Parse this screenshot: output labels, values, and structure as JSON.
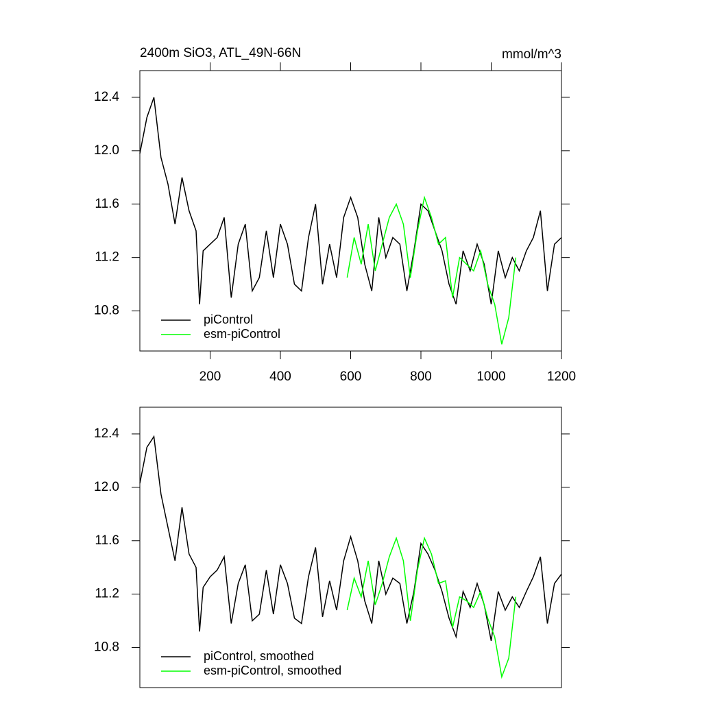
{
  "chart_data": [
    {
      "type": "line",
      "title": "2400m SiO3, ATL_49N-66N",
      "units": "mmol/m^3",
      "xlim": [
        0,
        1200
      ],
      "xticks": [
        200,
        400,
        600,
        800,
        1000,
        1200
      ],
      "ylim": [
        10.5,
        12.6
      ],
      "yticks": [
        {
          "value": 10.8,
          "label": "10.8"
        },
        11.2,
        11.6,
        {
          "value": 12.0,
          "label": "12.0"
        },
        12.4
      ],
      "legend": "lower left",
      "series": [
        {
          "name": "piControl",
          "color": "#000000",
          "x": [
            0,
            20,
            40,
            60,
            80,
            100,
            120,
            140,
            160,
            170,
            180,
            200,
            220,
            240,
            260,
            280,
            300,
            320,
            340,
            360,
            380,
            400,
            420,
            440,
            460,
            480,
            500,
            520,
            540,
            560,
            580,
            600,
            620,
            640,
            660,
            680,
            700,
            720,
            740,
            760,
            780,
            800,
            820,
            840,
            860,
            880,
            900,
            920,
            940,
            960,
            980,
            1000,
            1020,
            1040,
            1060,
            1080,
            1100,
            1120,
            1140,
            1160,
            1180,
            1200
          ],
          "values": [
            11.98,
            12.25,
            12.4,
            11.95,
            11.75,
            11.45,
            11.8,
            11.55,
            11.4,
            10.85,
            11.25,
            11.3,
            11.35,
            11.5,
            10.9,
            11.3,
            11.45,
            10.95,
            11.05,
            11.4,
            11.05,
            11.45,
            11.3,
            11.0,
            10.95,
            11.35,
            11.6,
            11.0,
            11.3,
            11.05,
            11.5,
            11.65,
            11.5,
            11.15,
            10.95,
            11.5,
            11.2,
            11.35,
            11.3,
            10.95,
            11.25,
            11.6,
            11.55,
            11.4,
            11.25,
            11.0,
            10.85,
            11.25,
            11.1,
            11.3,
            11.15,
            10.85,
            11.25,
            11.05,
            11.2,
            11.1,
            11.25,
            11.35,
            11.55,
            10.95,
            11.3,
            11.35
          ]
        },
        {
          "name": "esm-piControl",
          "color": "#00ff00",
          "x": [
            590,
            610,
            630,
            650,
            670,
            690,
            710,
            730,
            750,
            770,
            790,
            810,
            830,
            850,
            870,
            890,
            910,
            930,
            950,
            970,
            990,
            1010,
            1030,
            1050,
            1070
          ],
          "values": [
            11.05,
            11.35,
            11.15,
            11.45,
            11.1,
            11.3,
            11.5,
            11.6,
            11.45,
            11.05,
            11.4,
            11.65,
            11.5,
            11.3,
            11.35,
            10.9,
            11.2,
            11.15,
            11.1,
            11.25,
            11.0,
            10.85,
            10.55,
            10.75,
            11.2
          ]
        }
      ]
    },
    {
      "type": "line",
      "xlim": [
        0,
        1200
      ],
      "ylim": [
        10.5,
        12.6
      ],
      "yticks": [
        {
          "value": 10.8,
          "label": "10.8"
        },
        11.2,
        11.6,
        {
          "value": 12.0,
          "label": "12.0"
        },
        12.4
      ],
      "legend": "lower left",
      "series": [
        {
          "name": "piControl, smoothed",
          "color": "#000000",
          "x": [
            0,
            20,
            40,
            60,
            80,
            100,
            120,
            140,
            160,
            170,
            180,
            200,
            220,
            240,
            260,
            280,
            300,
            320,
            340,
            360,
            380,
            400,
            420,
            440,
            460,
            480,
            500,
            520,
            540,
            560,
            580,
            600,
            620,
            640,
            660,
            680,
            700,
            720,
            740,
            760,
            780,
            800,
            820,
            840,
            860,
            880,
            900,
            920,
            940,
            960,
            980,
            1000,
            1020,
            1040,
            1060,
            1080,
            1100,
            1120,
            1140,
            1160,
            1180,
            1200
          ],
          "values": [
            12.03,
            12.3,
            12.38,
            11.95,
            11.7,
            11.45,
            11.85,
            11.5,
            11.4,
            10.92,
            11.25,
            11.33,
            11.38,
            11.48,
            10.98,
            11.28,
            11.42,
            11.0,
            11.05,
            11.38,
            11.05,
            11.42,
            11.28,
            11.02,
            10.98,
            11.33,
            11.55,
            11.03,
            11.3,
            11.08,
            11.45,
            11.63,
            11.45,
            11.15,
            10.98,
            11.45,
            11.2,
            11.32,
            11.28,
            10.98,
            11.22,
            11.58,
            11.5,
            11.38,
            11.22,
            11.02,
            10.88,
            11.22,
            11.1,
            11.28,
            11.12,
            10.85,
            11.22,
            11.08,
            11.18,
            11.1,
            11.22,
            11.33,
            11.48,
            10.98,
            11.28,
            11.35
          ]
        },
        {
          "name": "esm-piControl, smoothed",
          "color": "#00ff00",
          "x": [
            590,
            610,
            630,
            650,
            670,
            690,
            710,
            730,
            750,
            770,
            790,
            810,
            830,
            850,
            870,
            890,
            910,
            930,
            950,
            970,
            990,
            1010,
            1030,
            1050,
            1070
          ],
          "values": [
            11.08,
            11.32,
            11.18,
            11.45,
            11.12,
            11.28,
            11.48,
            11.62,
            11.45,
            11.0,
            11.38,
            11.62,
            11.5,
            11.28,
            11.3,
            10.95,
            11.18,
            11.15,
            11.1,
            11.22,
            11.02,
            10.88,
            10.58,
            10.72,
            11.18
          ]
        }
      ]
    }
  ]
}
